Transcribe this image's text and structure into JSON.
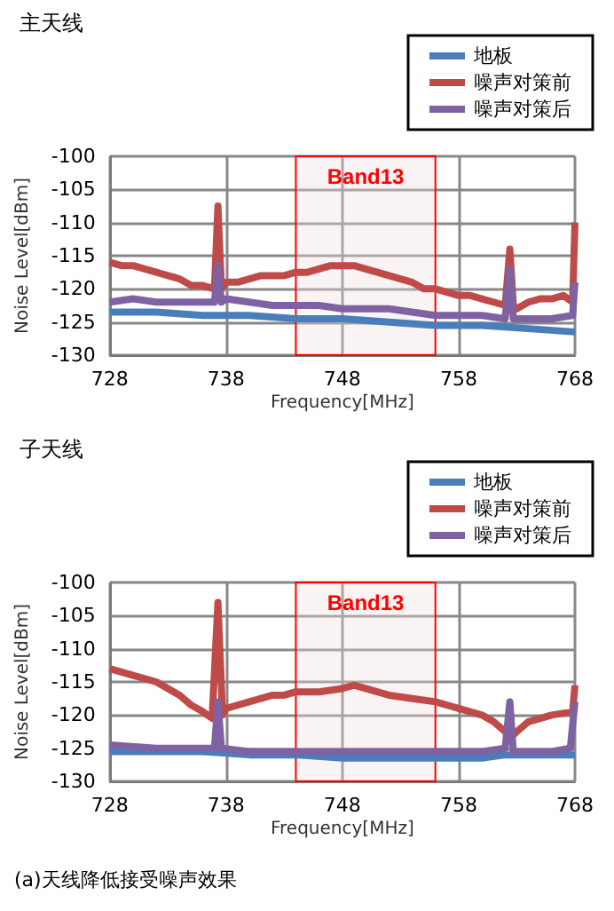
{
  "chart_data": [
    {
      "type": "line",
      "title": "主天线",
      "xlabel": "Frequency[MHz]",
      "ylabel": "Noise Level[dBm]",
      "xlim": [
        728,
        768
      ],
      "xticks": [
        728,
        738,
        748,
        758,
        768
      ],
      "ylim": [
        -130,
        -100
      ],
      "yticks": [
        -130,
        -125,
        -120,
        -115,
        -110,
        -105,
        -100
      ],
      "grid": true,
      "legend": "top right",
      "bands": [
        {
          "axis": "x",
          "from": 744,
          "to": 756,
          "label": "Band13",
          "color": "#ff0000"
        }
      ],
      "series": [
        {
          "name": "地板",
          "color": "#4a7ebb",
          "x": [
            728,
            732,
            736,
            740,
            744,
            748,
            752,
            756,
            760,
            764,
            768
          ],
          "values": [
            -123.5,
            -123.5,
            -124,
            -124,
            -124.5,
            -124.5,
            -125,
            -125.5,
            -125.5,
            -126,
            -126.5
          ]
        },
        {
          "name": "噪声对策前",
          "color": "#be4b48",
          "x": [
            728,
            729,
            730,
            731,
            732,
            733,
            734,
            735,
            736,
            737,
            737.3,
            737.6,
            738,
            739,
            740,
            741,
            742,
            743,
            744,
            745,
            746,
            747,
            748,
            749,
            750,
            751,
            752,
            753,
            754,
            755,
            756,
            757,
            758,
            759,
            760,
            761,
            762,
            762.4,
            762.7,
            763,
            764,
            765,
            766,
            767,
            767.8,
            768
          ],
          "values": [
            -116,
            -116.5,
            -116.5,
            -117,
            -117.5,
            -118,
            -118.5,
            -119.5,
            -119.5,
            -120,
            -107.5,
            -120,
            -119,
            -119,
            -118.5,
            -118,
            -118,
            -118,
            -117.5,
            -117.5,
            -117,
            -116.5,
            -116.5,
            -116.5,
            -117,
            -117.5,
            -118,
            -118.5,
            -119,
            -120,
            -120,
            -120.5,
            -121,
            -121,
            -121.5,
            -122,
            -122.5,
            -114,
            -122.5,
            -123,
            -122,
            -121.5,
            -121.5,
            -121,
            -122,
            -110
          ]
        },
        {
          "name": "噪声对策后",
          "color": "#7e62a1",
          "x": [
            728,
            730,
            732,
            734,
            736,
            737,
            737.3,
            737.6,
            738,
            740,
            742,
            744,
            746,
            748,
            750,
            752,
            754,
            756,
            758,
            760,
            762,
            762.4,
            762.7,
            764,
            766,
            767.8,
            768
          ],
          "values": [
            -122,
            -121.5,
            -122,
            -122,
            -122,
            -122,
            -116.5,
            -122,
            -121.5,
            -122,
            -122.5,
            -122.5,
            -122.5,
            -123,
            -123,
            -123,
            -123.5,
            -124,
            -124,
            -124,
            -124.5,
            -117,
            -124.5,
            -124.5,
            -124.5,
            -124,
            -119
          ]
        }
      ]
    },
    {
      "type": "line",
      "title": "子天线",
      "xlabel": "Frequency[MHz]",
      "ylabel": "Noise Level[dBm]",
      "xlim": [
        728,
        768
      ],
      "xticks": [
        728,
        738,
        748,
        758,
        768
      ],
      "ylim": [
        -130,
        -100
      ],
      "yticks": [
        -130,
        -125,
        -120,
        -115,
        -110,
        -105,
        -100
      ],
      "grid": true,
      "legend": "top right",
      "bands": [
        {
          "axis": "x",
          "from": 744,
          "to": 756,
          "label": "Band13",
          "color": "#ff0000"
        }
      ],
      "annotations": [
        "(a)天线降低接受噪声效果"
      ],
      "series": [
        {
          "name": "地板",
          "color": "#4a7ebb",
          "x": [
            728,
            732,
            736,
            740,
            744,
            748,
            752,
            756,
            760,
            762,
            764,
            768
          ],
          "values": [
            -125.5,
            -125.5,
            -125.5,
            -126,
            -126,
            -126.5,
            -126.5,
            -126.5,
            -126.5,
            -126,
            -126,
            -126
          ]
        },
        {
          "name": "噪声对策前",
          "color": "#be4b48",
          "x": [
            728,
            729,
            730,
            731,
            732,
            733,
            734,
            735,
            736,
            736.8,
            737.3,
            737.7,
            738,
            739,
            740,
            741,
            742,
            743,
            744,
            746,
            748,
            749,
            750,
            752,
            754,
            756,
            758,
            760,
            761,
            762,
            762.4,
            763,
            764,
            766,
            767.8,
            768
          ],
          "values": [
            -113,
            -113.5,
            -114,
            -114.5,
            -115,
            -116,
            -117,
            -118.5,
            -119.5,
            -120.5,
            -103,
            -120,
            -119,
            -118.5,
            -118,
            -117.5,
            -117,
            -117,
            -116.5,
            -116.5,
            -116,
            -115.5,
            -116,
            -117,
            -117.5,
            -118,
            -119,
            -120,
            -121,
            -122.5,
            -123.5,
            -122.5,
            -121,
            -120,
            -119.5,
            -115.5
          ]
        },
        {
          "name": "噪声对策后",
          "color": "#7e62a1",
          "x": [
            728,
            732,
            737,
            737.3,
            737.6,
            740,
            744,
            748,
            752,
            756,
            760,
            762,
            762.4,
            762.7,
            766,
            767.6,
            768
          ],
          "values": [
            -124.5,
            -125,
            -125,
            -118,
            -125,
            -125.5,
            -125.5,
            -125.5,
            -125.5,
            -125.5,
            -125.5,
            -125,
            -118,
            -125.5,
            -125.5,
            -125,
            -118
          ]
        }
      ]
    }
  ]
}
